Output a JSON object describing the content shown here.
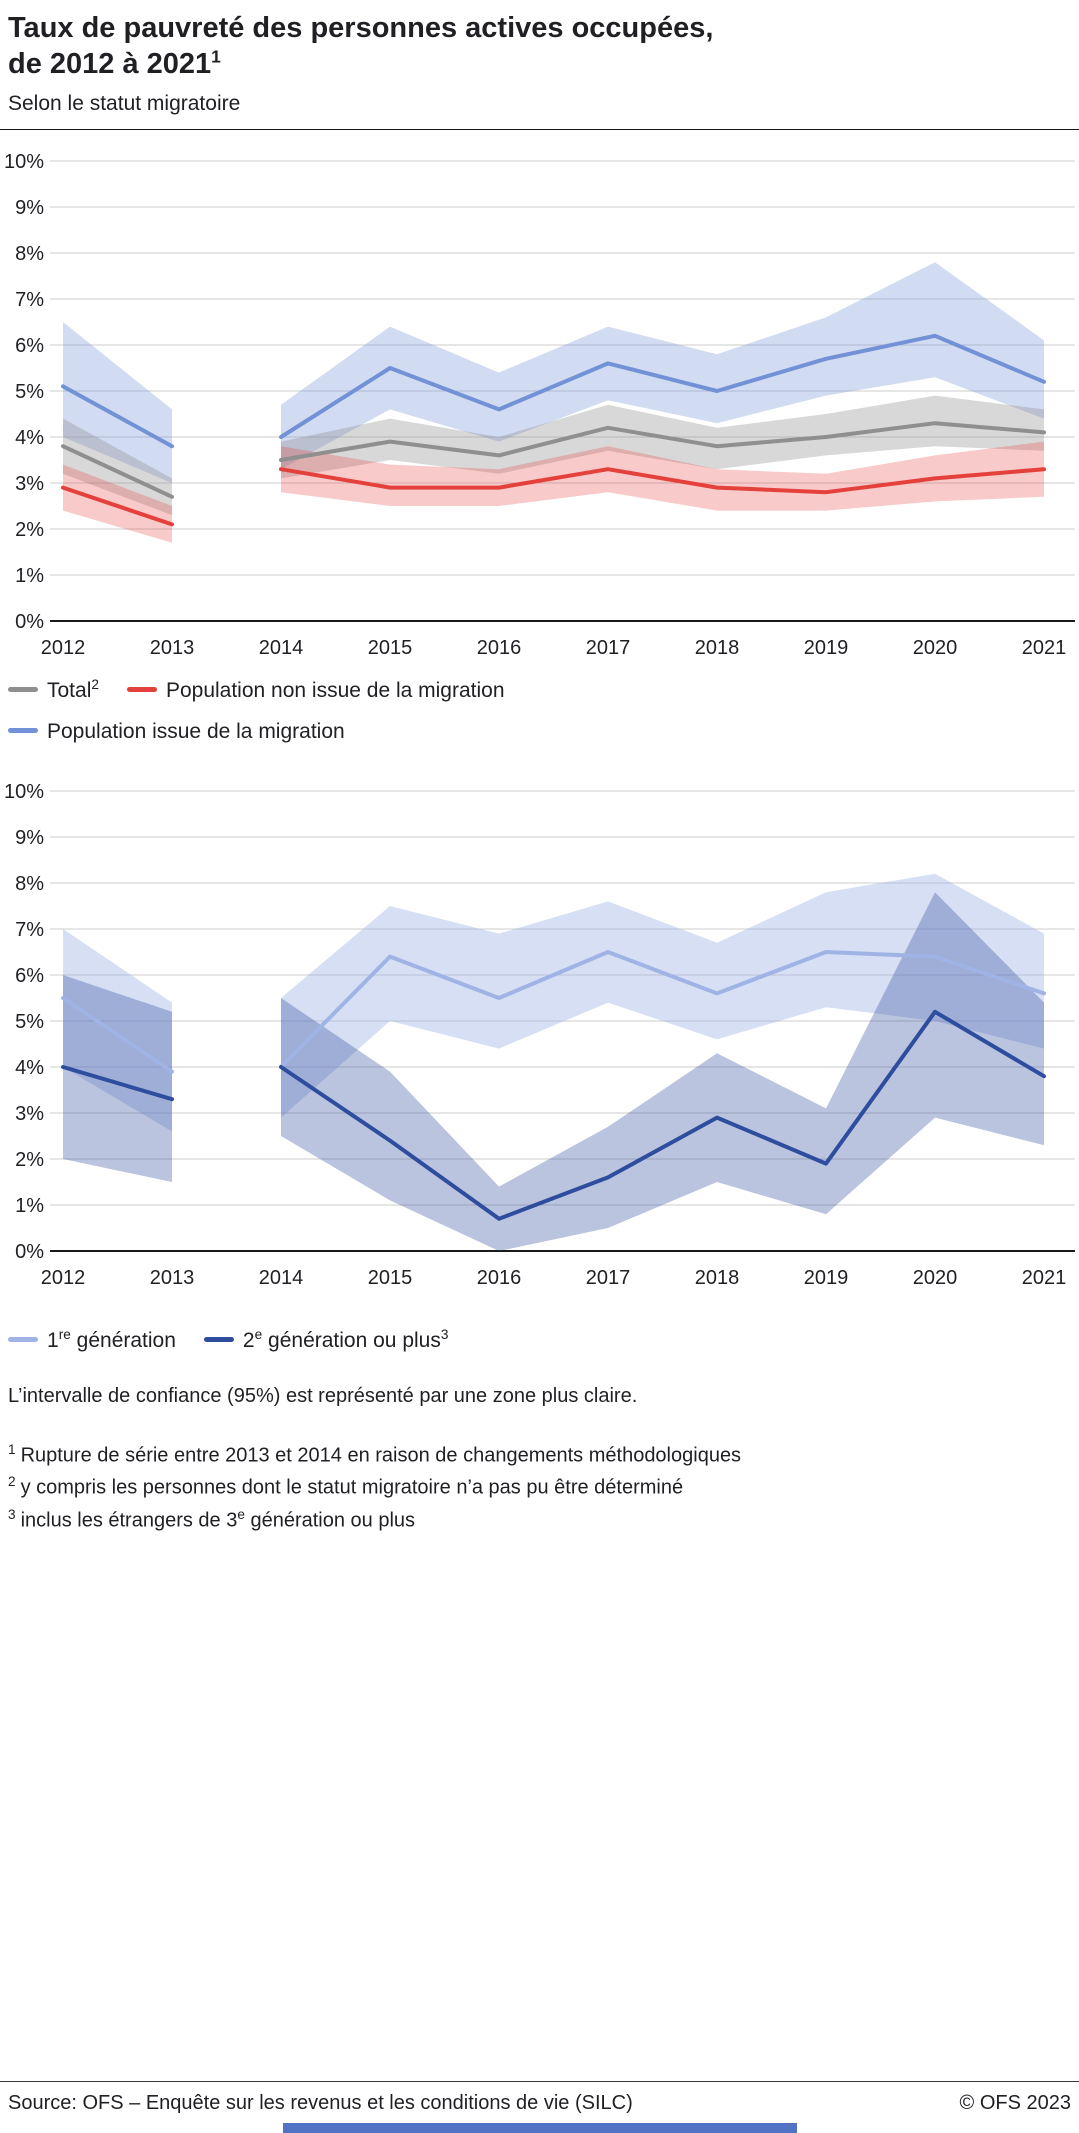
{
  "header": {
    "title_line1": "Taux de pauvreté des personnes actives occupées,",
    "title_line2": "de 2012 à 2021",
    "title_sup": "1",
    "subtitle": "Selon le statut migratoire"
  },
  "colors": {
    "total_line": "#8f8f8f",
    "total_band": "rgba(143,143,143,0.35)",
    "non_migration_line": "#e5413c",
    "non_migration_band": "rgba(229,65,60,0.28)",
    "migration_line": "#7291d6",
    "migration_band": "rgba(114,145,214,0.33)",
    "gen1_line": "#9fb3e4",
    "gen1_band": "rgba(159,179,228,0.42)",
    "gen2_line": "#2f4d9e",
    "gen2_band": "rgba(47,77,158,0.33)",
    "brand_bar": "#5273c5",
    "axis_line": "#1a1a1a",
    "gridline": "#cdcdcd"
  },
  "chart_data": [
    {
      "type": "line",
      "title": "Taux de pauvreté des personnes actives occupées, selon le statut migratoire",
      "categories": [
        "2012",
        "2013",
        "2014",
        "2015",
        "2016",
        "2017",
        "2018",
        "2019",
        "2020",
        "2021"
      ],
      "ylim": [
        0,
        10
      ],
      "ytick_step": 1,
      "ytick_suffix": "%",
      "grid": true,
      "legend_position": "bottom",
      "segments": [
        [
          0,
          1
        ],
        [
          2,
          9
        ]
      ],
      "series": [
        {
          "name": "Population issue de la migration",
          "color_key": "migration_line",
          "band_key": "migration_band",
          "values": [
            5.1,
            3.8,
            4.0,
            5.5,
            4.6,
            5.6,
            5.0,
            5.7,
            6.2,
            5.2
          ],
          "ci_low": [
            4.0,
            3.0,
            3.3,
            4.6,
            3.9,
            4.8,
            4.3,
            4.9,
            5.3,
            4.4
          ],
          "ci_high": [
            6.5,
            4.6,
            4.7,
            6.4,
            5.4,
            6.4,
            5.8,
            6.6,
            7.8,
            6.1
          ]
        },
        {
          "name": "Total",
          "color_key": "total_line",
          "band_key": "total_band",
          "values": [
            3.8,
            2.7,
            3.5,
            3.9,
            3.6,
            4.2,
            3.8,
            4.0,
            4.3,
            4.1
          ],
          "ci_low": [
            3.2,
            2.3,
            3.1,
            3.5,
            3.2,
            3.7,
            3.3,
            3.6,
            3.8,
            3.7
          ],
          "ci_high": [
            4.4,
            3.1,
            3.9,
            4.4,
            4.0,
            4.7,
            4.2,
            4.5,
            4.9,
            4.6
          ]
        },
        {
          "name": "Population non issue de la migration",
          "color_key": "non_migration_line",
          "band_key": "non_migration_band",
          "values": [
            2.9,
            2.1,
            3.3,
            2.9,
            2.9,
            3.3,
            2.9,
            2.8,
            3.1,
            3.3
          ],
          "ci_low": [
            2.4,
            1.7,
            2.8,
            2.5,
            2.5,
            2.8,
            2.4,
            2.4,
            2.6,
            2.7
          ],
          "ci_high": [
            3.4,
            2.5,
            3.8,
            3.4,
            3.3,
            3.8,
            3.3,
            3.2,
            3.6,
            3.9
          ]
        }
      ]
    },
    {
      "type": "line",
      "title": "Taux de pauvreté des personnes actives occupées issues de la migration, selon la génération",
      "categories": [
        "2012",
        "2013",
        "2014",
        "2015",
        "2016",
        "2017",
        "2018",
        "2019",
        "2020",
        "2021"
      ],
      "ylim": [
        0,
        10
      ],
      "ytick_step": 1,
      "ytick_suffix": "%",
      "grid": true,
      "legend_position": "bottom",
      "segments": [
        [
          0,
          1
        ],
        [
          2,
          9
        ]
      ],
      "series": [
        {
          "name": "1re génération",
          "color_key": "gen1_line",
          "band_key": "gen1_band",
          "values": [
            5.5,
            3.9,
            4.0,
            6.4,
            5.5,
            6.5,
            5.6,
            6.5,
            6.4,
            5.6
          ],
          "ci_low": [
            4.0,
            2.6,
            2.9,
            5.0,
            4.4,
            5.4,
            4.6,
            5.3,
            5.0,
            4.4
          ],
          "ci_high": [
            7.0,
            5.4,
            5.5,
            7.5,
            6.9,
            7.6,
            6.7,
            7.8,
            8.2,
            6.9
          ]
        },
        {
          "name": "2e génération ou plus",
          "color_key": "gen2_line",
          "band_key": "gen2_band",
          "values": [
            4.0,
            3.3,
            4.0,
            2.4,
            0.7,
            1.6,
            2.9,
            1.9,
            5.2,
            3.8
          ],
          "ci_low": [
            2.0,
            1.5,
            2.5,
            1.1,
            0.0,
            0.5,
            1.5,
            0.8,
            2.9,
            2.3
          ],
          "ci_high": [
            6.0,
            5.2,
            5.5,
            3.9,
            1.4,
            2.7,
            4.3,
            3.1,
            7.8,
            5.4
          ]
        }
      ]
    }
  ],
  "legend1": {
    "items": [
      {
        "pre": "Total",
        "sup": "2"
      },
      {
        "pre": "Population non issue de la migration"
      },
      {
        "pre": "Population issue de la migration"
      }
    ]
  },
  "legend2": {
    "items": [
      {
        "pre": "1",
        "sup": "re",
        "post": " génération"
      },
      {
        "pre": "2",
        "sup": "e",
        "post": " génération ou plus",
        "sup2": "3"
      }
    ]
  },
  "notes": {
    "ci_note": "L’intervalle de confiance (95%) est représenté par une zone plus claire.",
    "footnotes": [
      {
        "ref": "1",
        "pre": "Rupture de série entre 2013 et 2014 en raison de changements méthodologiques"
      },
      {
        "ref": "2",
        "pre": "y compris les personnes dont le statut migratoire n’a pas pu être déterminé"
      },
      {
        "ref": "3",
        "pre": "inclus les étrangers de 3",
        "supe": "e",
        "post": " génération ou plus"
      }
    ]
  },
  "footer": {
    "source": "Source: OFS – Enquête sur les revenus et les conditions de vie (SILC)",
    "copyright": "© OFS 2023"
  }
}
